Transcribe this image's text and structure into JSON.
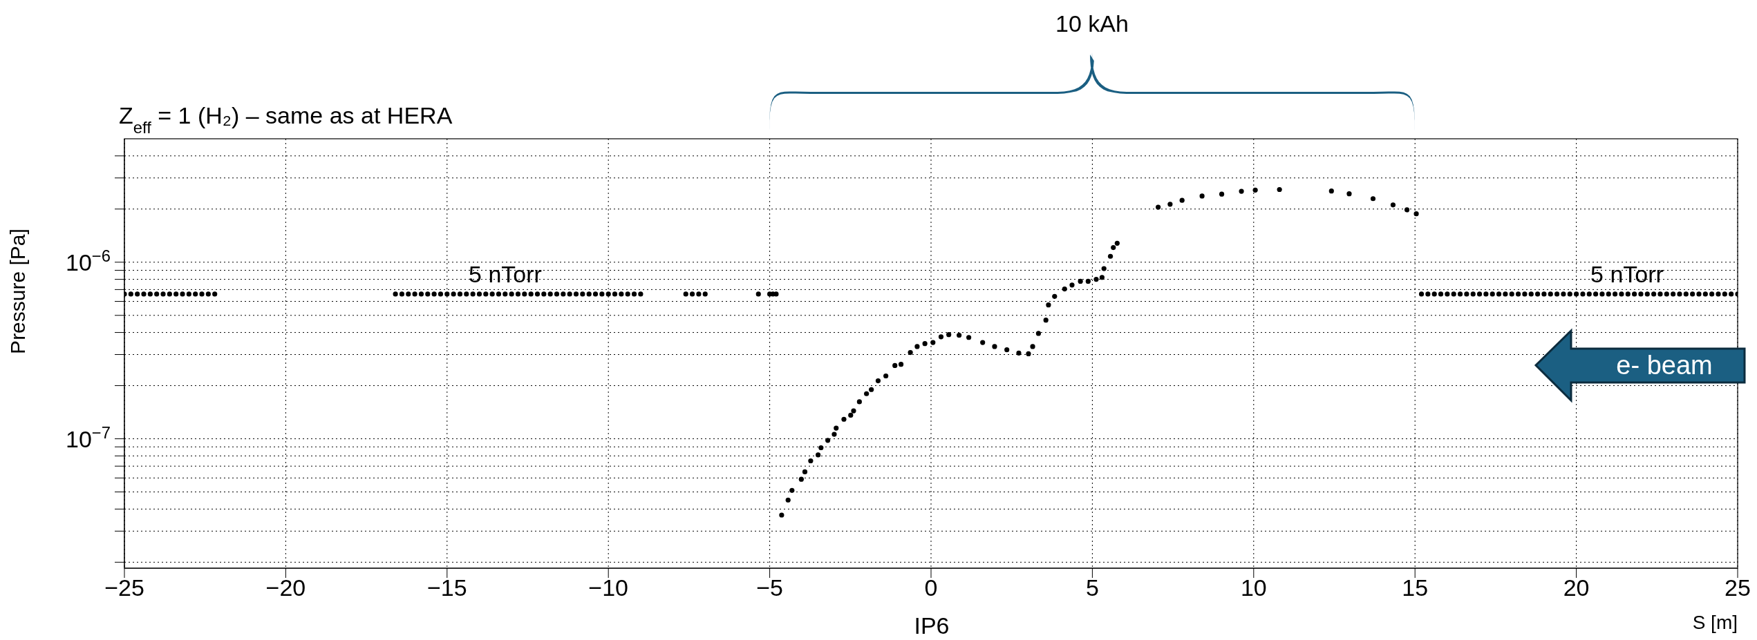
{
  "chart_data": {
    "type": "scatter",
    "title": "Z$_{eff}$ = 1 (H₂) – same as at HERA",
    "xlabel": "S [m]",
    "ylabel": "Pressure [Pa]",
    "annotations": [
      "10 kAh",
      "5 nTorr",
      "5 nTorr",
      "IP6",
      "e- beam"
    ],
    "xlim": [
      -25,
      25
    ],
    "xticks": [
      -25,
      -20,
      -15,
      -10,
      -5,
      0,
      5,
      10,
      15,
      20,
      25
    ],
    "ylim": [
      1.85e-08,
      5e-06
    ],
    "log": "y",
    "grid": true,
    "marker": "circle",
    "yticks": [
      {
        "value": 2e-08,
        "label": null
      },
      {
        "value": 3e-08,
        "label": null
      },
      {
        "value": 4e-08,
        "label": null
      },
      {
        "value": 5e-08,
        "label": null
      },
      {
        "value": 6e-08,
        "label": null
      },
      {
        "value": 7e-08,
        "label": null
      },
      {
        "value": 8e-08,
        "label": null
      },
      {
        "value": 9e-08,
        "label": null
      },
      {
        "value": 1e-07,
        "label": "10$^{−7}$"
      },
      {
        "value": 2e-07,
        "label": null
      },
      {
        "value": 3e-07,
        "label": null
      },
      {
        "value": 4e-07,
        "label": null
      },
      {
        "value": 5e-07,
        "label": null
      },
      {
        "value": 6e-07,
        "label": null
      },
      {
        "value": 7e-07,
        "label": null
      },
      {
        "value": 8e-07,
        "label": null
      },
      {
        "value": 9e-07,
        "label": null
      },
      {
        "value": 1e-06,
        "label": "10$^{−6}$"
      },
      {
        "value": 2e-06,
        "label": null
      },
      {
        "value": 3e-06,
        "label": null
      },
      {
        "value": 4e-06,
        "label": null
      }
    ],
    "series": [
      {
        "color": "#000000",
        "x": [
          -25,
          -24.8,
          -24.6,
          -24.4,
          -24.2,
          -24,
          -23.8,
          -23.6,
          -23.4,
          -23.2,
          -23,
          -22.8,
          -22.6,
          -22.4,
          -22.2,
          -16.6,
          -16.4,
          -16.2,
          -16,
          -15.8,
          -15.6,
          -15.4,
          -15.2,
          -15,
          -14.8,
          -14.6,
          -14.4,
          -14.2,
          -14,
          -13.8,
          -13.6,
          -13.4,
          -13.2,
          -13,
          -12.8,
          -12.6,
          -12.4,
          -12.2,
          -12,
          -11.8,
          -11.6,
          -11.4,
          -11.2,
          -11,
          -10.8,
          -10.6,
          -10.4,
          -10.2,
          -10,
          -9.8,
          -9.6,
          -9.4,
          -9.2,
          -9,
          -7.6,
          -7.4,
          -7.2,
          -7,
          -5.35,
          -5,
          -4.9,
          -4.8,
          -4.63,
          -4.43,
          -4.31,
          -4.02,
          -3.91,
          -3.73,
          -3.5,
          -3.41,
          -3.2,
          -3,
          -2.94,
          -2.7,
          -2.49,
          -2.4,
          -2.22,
          -2,
          -1.85,
          -1.64,
          -1.4,
          -1.12,
          -0.93,
          -0.64,
          -0.43,
          -0.19,
          0.06,
          0.31,
          0.55,
          0.87,
          1.17,
          1.6,
          1.97,
          2.35,
          2.72,
          3.02,
          3.15,
          3.33,
          3.56,
          3.64,
          3.83,
          4.14,
          4.37,
          4.63,
          4.87,
          5.12,
          5.3,
          5.36,
          5.56,
          5.65,
          5.77,
          7.04,
          7.41,
          7.78,
          8.4,
          9.01,
          9.62,
          10.05,
          10.8,
          12.41,
          12.96,
          13.7,
          14.32,
          14.75,
          15.04,
          15.2,
          15.4,
          15.6,
          15.8,
          16,
          16.2,
          16.4,
          16.6,
          16.8,
          17,
          17.2,
          17.4,
          17.6,
          17.8,
          18,
          18.2,
          18.4,
          18.6,
          18.8,
          19,
          19.2,
          19.4,
          19.6,
          19.8,
          20,
          20.2,
          20.4,
          20.6,
          20.8,
          21,
          21.2,
          21.4,
          21.6,
          21.8,
          22,
          22.2,
          22.4,
          22.6,
          22.8,
          23,
          23.2,
          23.4,
          23.6,
          23.8,
          24,
          24.2,
          24.4,
          24.6,
          24.8,
          25
        ],
        "values": [
          6.6e-07,
          6.6e-07,
          6.6e-07,
          6.6e-07,
          6.6e-07,
          6.6e-07,
          6.6e-07,
          6.6e-07,
          6.6e-07,
          6.6e-07,
          6.6e-07,
          6.6e-07,
          6.6e-07,
          6.6e-07,
          6.6e-07,
          6.6e-07,
          6.6e-07,
          6.6e-07,
          6.6e-07,
          6.6e-07,
          6.6e-07,
          6.6e-07,
          6.6e-07,
          6.6e-07,
          6.6e-07,
          6.6e-07,
          6.6e-07,
          6.6e-07,
          6.6e-07,
          6.6e-07,
          6.6e-07,
          6.6e-07,
          6.6e-07,
          6.6e-07,
          6.6e-07,
          6.6e-07,
          6.6e-07,
          6.6e-07,
          6.6e-07,
          6.6e-07,
          6.6e-07,
          6.6e-07,
          6.6e-07,
          6.6e-07,
          6.6e-07,
          6.6e-07,
          6.6e-07,
          6.6e-07,
          6.6e-07,
          6.6e-07,
          6.6e-07,
          6.6e-07,
          6.6e-07,
          6.6e-07,
          6.6e-07,
          6.6e-07,
          6.6e-07,
          6.6e-07,
          6.6e-07,
          6.6e-07,
          6.6e-07,
          6.6e-07,
          3.7e-08,
          4.5e-08,
          5.1e-08,
          5.9e-08,
          6.5e-08,
          7.5e-08,
          8.1e-08,
          8.9e-08,
          9.8e-08,
          1.06e-07,
          1.15e-07,
          1.29e-07,
          1.36e-07,
          1.44e-07,
          1.62e-07,
          1.8e-07,
          1.9e-07,
          2.13e-07,
          2.27e-07,
          2.6e-07,
          2.64e-07,
          3.08e-07,
          3.33e-07,
          3.46e-07,
          3.51e-07,
          3.78e-07,
          3.89e-07,
          3.86e-07,
          3.75e-07,
          3.51e-07,
          3.33e-07,
          3.19e-07,
          3.06e-07,
          3.03e-07,
          3.33e-07,
          3.95e-07,
          4.7e-07,
          5.73e-07,
          6.4e-07,
          7.05e-07,
          7.43e-07,
          7.8e-07,
          7.8e-07,
          8e-07,
          8.2e-07,
          9.2e-07,
          1.08e-06,
          1.21e-06,
          1.28e-06,
          2.05e-06,
          2.13e-06,
          2.24e-06,
          2.37e-06,
          2.43e-06,
          2.52e-06,
          2.56e-06,
          2.58e-06,
          2.53e-06,
          2.44e-06,
          2.29e-06,
          2.11e-06,
          1.98e-06,
          1.88e-06,
          6.6e-07,
          6.6e-07,
          6.6e-07,
          6.6e-07,
          6.6e-07,
          6.6e-07,
          6.6e-07,
          6.6e-07,
          6.6e-07,
          6.6e-07,
          6.6e-07,
          6.6e-07,
          6.6e-07,
          6.6e-07,
          6.6e-07,
          6.6e-07,
          6.6e-07,
          6.6e-07,
          6.6e-07,
          6.6e-07,
          6.6e-07,
          6.6e-07,
          6.6e-07,
          6.6e-07,
          6.6e-07,
          6.6e-07,
          6.6e-07,
          6.6e-07,
          6.6e-07,
          6.6e-07,
          6.6e-07,
          6.6e-07,
          6.6e-07,
          6.6e-07,
          6.6e-07,
          6.6e-07,
          6.6e-07,
          6.6e-07,
          6.6e-07,
          6.6e-07,
          6.6e-07,
          6.6e-07,
          6.6e-07,
          6.6e-07,
          6.6e-07,
          6.6e-07,
          6.6e-07,
          6.6e-07,
          6.6e-07,
          6.6e-07
        ]
      }
    ]
  }
}
